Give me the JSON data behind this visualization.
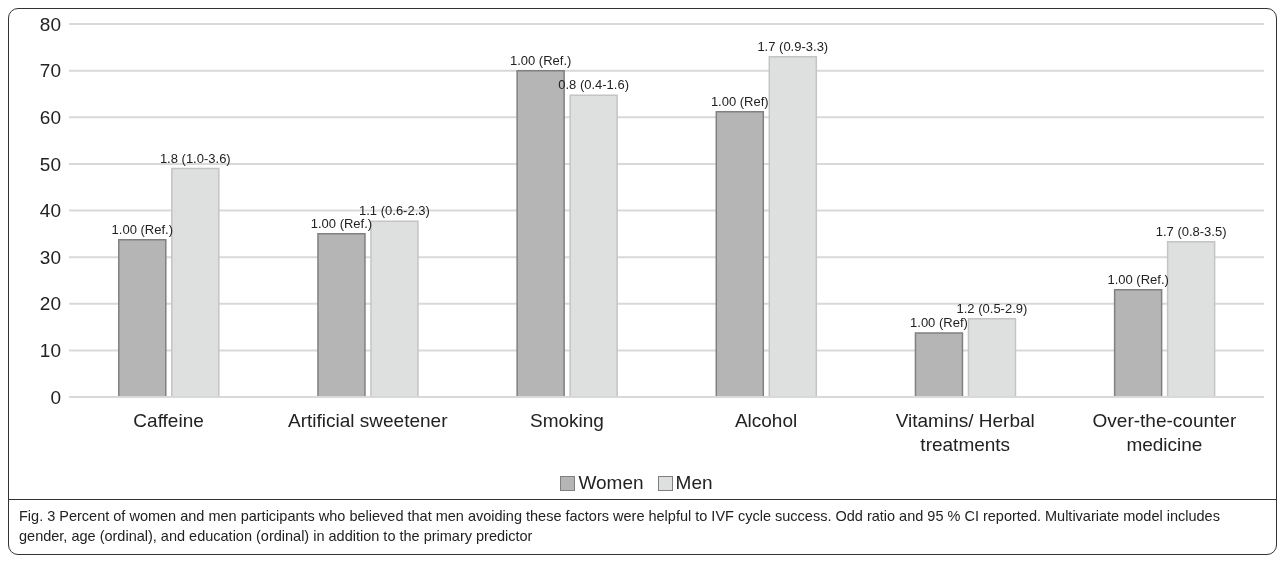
{
  "chart_data": {
    "type": "bar",
    "categories": [
      "Caffeine",
      "Artificial sweetener",
      "Smoking",
      "Alcohol",
      "Vitamins/ Herbal treatments",
      "Over-the-counter medicine"
    ],
    "series": [
      {
        "name": "Women",
        "color": "#b5b5b5",
        "values": [
          33.7,
          35,
          70,
          61.2,
          13.7,
          23
        ]
      },
      {
        "name": "Men",
        "color": "#dedfdf",
        "values": [
          49,
          37.7,
          64.7,
          73,
          16.8,
          33.3
        ]
      }
    ],
    "ylim": [
      0,
      80
    ],
    "yticks": [
      0,
      10,
      20,
      30,
      40,
      50,
      60,
      70,
      80
    ],
    "grid": "y",
    "legend": "bottom",
    "annotations": [
      {
        "text": "1.00 (Ref.)",
        "x": "Caffeine",
        "y": 33.7
      },
      {
        "text": "1.8 (1.0-3.6)",
        "x": "Caffeine",
        "y": 49
      },
      {
        "text": "1.00 (Ref.)",
        "x": "Artificial sweetener",
        "y": 35
      },
      {
        "text": "1.1 (0.6-2.3)",
        "x": "Artificial sweetener",
        "y": 37.7
      },
      {
        "text": "1.00 (Ref.)",
        "x": "Smoking",
        "y": 70
      },
      {
        "text": "0.8 (0.4-1.6)",
        "x": "Smoking",
        "y": 64.7
      },
      {
        "text": "1.00 (Ref)",
        "x": "Alcohol",
        "y": 61.2
      },
      {
        "text": "1.7 (0.9-3.3)",
        "x": "Alcohol",
        "y": 73
      },
      {
        "text": "1.00 (Ref)",
        "x": "Vitamins/ Herbal treatments",
        "y": 13.7
      },
      {
        "text": "1.2 (0.5-2.9)",
        "x": "Vitamins/ Herbal treatments",
        "y": 16.8
      },
      {
        "text": "1.00 (Ref.)",
        "x": "Over-the-counter medicine",
        "y": 23
      },
      {
        "text": "1.7 (0.8-3.5)",
        "x": "Over-the-counter medicine",
        "y": 33.3
      },
      "Fig. 3 Percent of women and men participants who believed that men avoiding these factors were helpful to IVF cycle success. Odd ratio and 95 % CI reported. Multivariate model includes gender, age (ordinal), and education (ordinal) in addition to the primary predictor"
    ]
  }
}
